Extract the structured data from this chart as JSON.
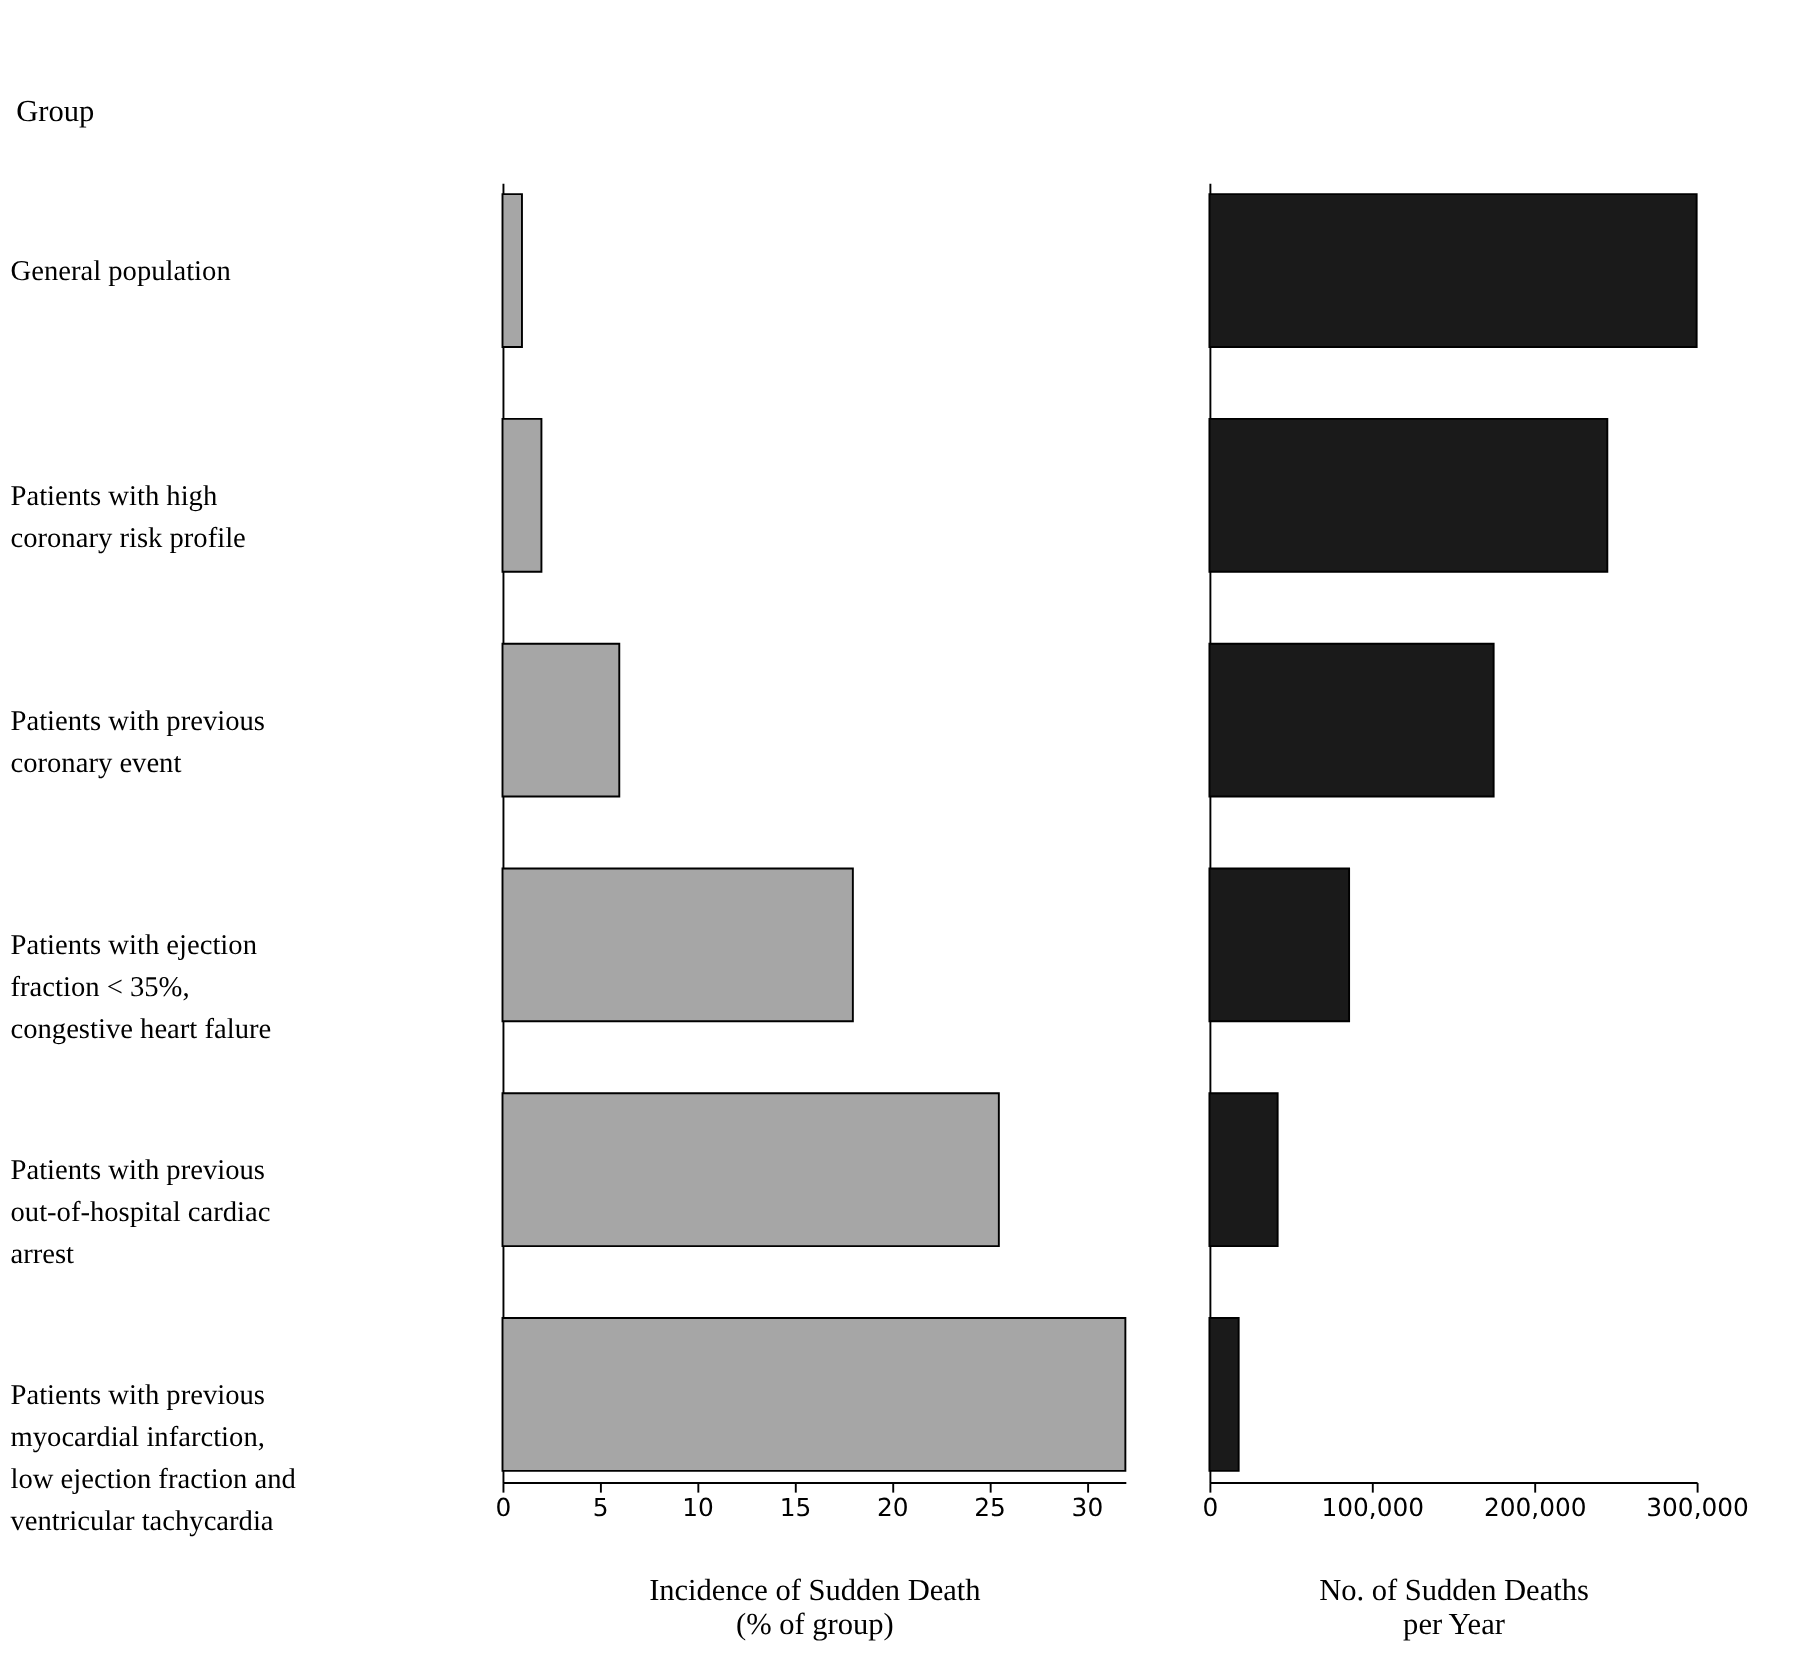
{
  "chart_data": [
    {
      "type": "bar",
      "orientation": "horizontal",
      "ylabel": "Group",
      "xlabel": "Incidence of Sudden Death\n(% of group)",
      "categories": [
        "General population",
        "Patients with high\ncoronary risk profile",
        "Patients with previous\ncoronary event",
        "Patients with ejection\nfraction < 35%,\ncongestive heart falure",
        "Patients with previous\nout-of-hospital cardiac\narrest",
        "Patients with previous\nmyocardial infarction,\nlow ejection fraction and\nventricular tachycardia"
      ],
      "values": [
        1,
        2,
        6,
        18,
        25.5,
        32
      ],
      "color": "#a6a6a6",
      "xlim": [
        0,
        32
      ],
      "xticks": [
        0,
        5,
        10,
        15,
        20,
        25,
        30
      ],
      "grid": false
    },
    {
      "type": "bar",
      "orientation": "horizontal",
      "xlabel": "No. of Sudden Deaths\nper Year",
      "categories": [
        null,
        null,
        null,
        null,
        null,
        null
      ],
      "values": [
        300000,
        245000,
        175000,
        86000,
        42000,
        18000
      ],
      "color": "#1a1a1a",
      "xlim": [
        0,
        300000
      ],
      "xticks": [
        0,
        {
          "value": 100000,
          "label": "100,000"
        },
        {
          "value": 200000,
          "label": "200,000"
        },
        {
          "value": 300000,
          "label": "300,000"
        }
      ],
      "tick_labels": "x",
      "grid": false
    }
  ]
}
